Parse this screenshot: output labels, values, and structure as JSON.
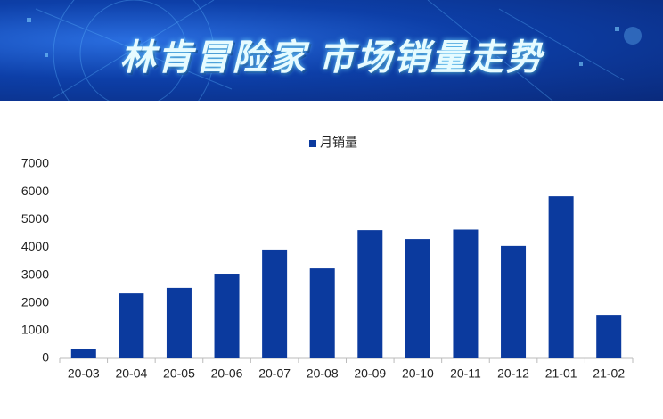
{
  "chart_data": {
    "type": "bar",
    "title": "林肯冒险家 市场销量走势",
    "categories": [
      "20-03",
      "20-04",
      "20-05",
      "20-06",
      "20-07",
      "20-08",
      "20-09",
      "20-10",
      "20-11",
      "20-12",
      "21-01",
      "21-02"
    ],
    "series": [
      {
        "name": "月销量",
        "color": "#0b3a9e",
        "values": [
          350,
          2340,
          2540,
          3050,
          3920,
          3240,
          4620,
          4300,
          4640,
          4050,
          5840,
          1570
        ]
      }
    ],
    "ylim": [
      0,
      7000
    ],
    "yticks": [
      0,
      1000,
      2000,
      3000,
      4000,
      5000,
      6000,
      7000
    ],
    "grid": false,
    "legend": "top"
  }
}
